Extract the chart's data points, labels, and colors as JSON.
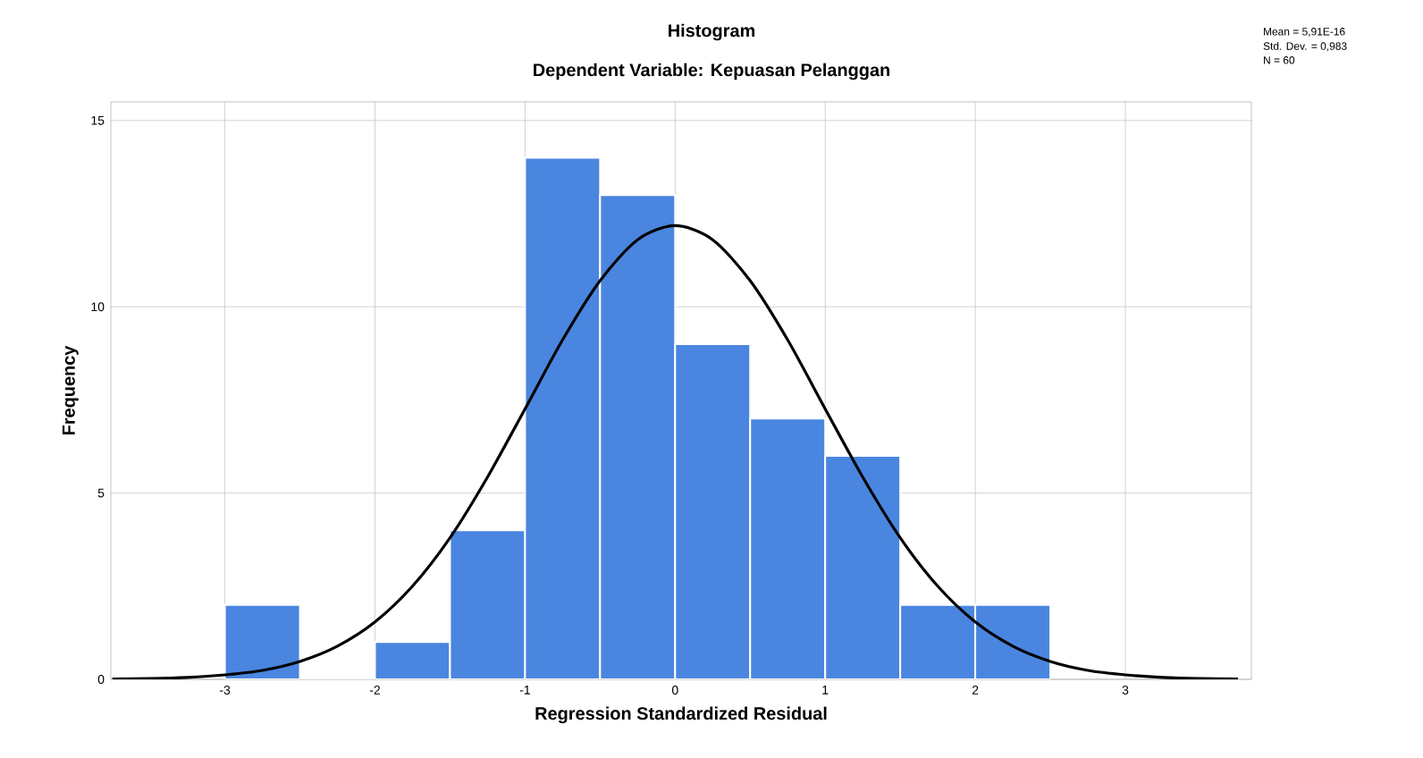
{
  "chart_data": {
    "type": "histogram",
    "title": "Histogram",
    "subtitle": "Dependent Variable: Kepuasan Pelanggan",
    "xlabel": "Regression Standardized Residual",
    "ylabel": "Frequency",
    "bins": [
      -3,
      -2.5,
      -2,
      -1.5,
      -1,
      -0.5,
      0,
      0.5,
      1,
      1.5,
      2,
      2.5
    ],
    "values": [
      2,
      0,
      1,
      4,
      14,
      13,
      9,
      7,
      6,
      2,
      2
    ],
    "color": "#4a86e0",
    "series": [
      {
        "type": "line",
        "color": "#000000",
        "x": [
          -3.75,
          -3.5,
          -3.25,
          -3,
          -2.75,
          -2.5,
          -2.25,
          -2,
          -1.75,
          -1.5,
          -1.25,
          -1,
          -0.75,
          -0.5,
          -0.25,
          0,
          0.25,
          0.5,
          0.75,
          1,
          1.25,
          1.5,
          1.75,
          2,
          2.25,
          2.5,
          2.75,
          3,
          3.25,
          3.5,
          3.75
        ],
        "values": [
          0.01,
          0.02,
          0.05,
          0.12,
          0.24,
          0.48,
          0.89,
          1.54,
          2.5,
          3.8,
          5.43,
          7.26,
          9.11,
          10.7,
          11.8,
          12.18,
          11.8,
          10.7,
          9.11,
          7.26,
          5.43,
          3.8,
          2.5,
          1.54,
          0.89,
          0.48,
          0.24,
          0.12,
          0.05,
          0.02,
          0.01
        ]
      }
    ],
    "xlim": [
      -3.76,
      3.84
    ],
    "ylim": [
      0,
      15.5
    ],
    "xticks": [
      -3,
      -2,
      -1,
      0,
      1,
      2,
      3
    ],
    "yticks": [
      0,
      5,
      10,
      15
    ],
    "grid": true,
    "annotations": [
      "Mean = 5,91E-16",
      "Std. Dev. = 0,983",
      "N = 60"
    ]
  }
}
